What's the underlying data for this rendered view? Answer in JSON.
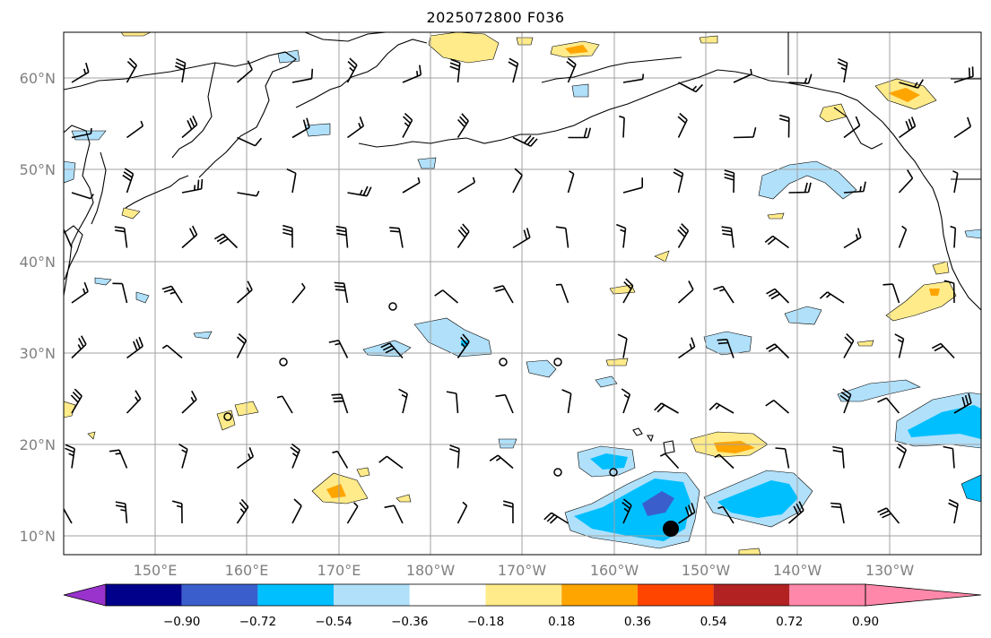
{
  "title": "2025072800 F036",
  "map": {
    "lon_range": [
      140,
      240
    ],
    "lat_range": [
      8,
      65
    ],
    "gridlines": true,
    "lat_labels": [
      "60°N",
      "50°N",
      "40°N",
      "30°N",
      "20°N",
      "10°N"
    ],
    "lon_labels": [
      "150°E",
      "160°E",
      "170°E",
      "180°W",
      "170°W",
      "160°W",
      "150°W",
      "140°W",
      "130°W"
    ]
  },
  "colorbar": {
    "colors": [
      "#9933cc",
      "#00008b",
      "#3a5fcd",
      "#00bfff",
      "#b0e0fa",
      "#ffffff",
      "#ffeb8a",
      "#ffa500",
      "#ff4500",
      "#b22222",
      "#ff88aa"
    ],
    "tick_labels": [
      "−0.90",
      "−0.72",
      "−0.54",
      "−0.36",
      "−0.18",
      "0.18",
      "0.36",
      "0.54",
      "0.72",
      "0.90"
    ],
    "extend": "both"
  },
  "markers": {
    "large_dot_color": "#000000"
  }
}
